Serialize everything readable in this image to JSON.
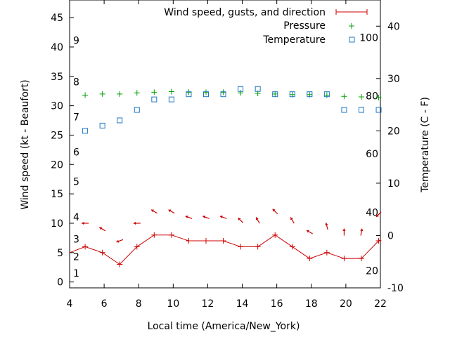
{
  "chart_data": {
    "type": "line",
    "xlabel": "Local time (America/New_York)",
    "ylabel_left": "Wind speed (kt - Beaufort)",
    "ylabel_right": "Temperature (C - F)",
    "x_range": [
      4,
      22
    ],
    "x_ticks": [
      "4",
      "6",
      "8",
      "10",
      "12",
      "14",
      "16",
      "18",
      "20",
      "22"
    ],
    "y_left_range": [
      -1,
      48
    ],
    "y_left_ticks": [
      "0",
      "5",
      "10",
      "15",
      "20",
      "25",
      "30",
      "35",
      "40",
      "45"
    ],
    "y_right_range": [
      -10,
      45
    ],
    "y_right_ticks": [
      "-10",
      "0",
      "10",
      "20",
      "30",
      "40"
    ],
    "beaufort_labels": [
      {
        "label": "1",
        "kt": 1.5
      },
      {
        "label": "2",
        "kt": 4.3
      },
      {
        "label": "3",
        "kt": 7.3
      },
      {
        "label": "4",
        "kt": 11.1
      },
      {
        "label": "5",
        "kt": 17.1
      },
      {
        "label": "6",
        "kt": 22.1
      },
      {
        "label": "7",
        "kt": 28.1
      },
      {
        "label": "8",
        "kt": 34.1
      },
      {
        "label": "9",
        "kt": 41.1
      }
    ],
    "fahrenheit_labels": [
      {
        "label": "20",
        "c": -6.7
      },
      {
        "label": "40",
        "c": 4.4
      },
      {
        "label": "60",
        "c": 15.6
      },
      {
        "label": "80",
        "c": 26.7
      },
      {
        "label": "100",
        "c": 37.8
      }
    ],
    "legend": {
      "wind": "Wind speed, gusts, and direction",
      "pressure": "Pressure",
      "temperature": "Temperature"
    },
    "series": [
      {
        "name": "Wind speed",
        "x": [
          4,
          4.9,
          5.9,
          6.9,
          7.9,
          8.9,
          9.9,
          10.9,
          11.9,
          12.9,
          13.9,
          14.9,
          15.9,
          16.9,
          17.9,
          18.9,
          19.9,
          20.9,
          21.9,
          22
        ],
        "values": [
          5,
          6,
          5,
          3,
          6,
          8,
          8,
          7,
          7,
          7,
          6,
          6,
          8,
          6,
          4,
          5,
          4,
          4,
          7,
          7.2
        ]
      },
      {
        "name": "Pressure",
        "x": [
          4.9,
          5.9,
          6.9,
          7.9,
          8.9,
          9.9,
          10.9,
          11.9,
          12.9,
          13.9,
          14.9,
          15.9,
          16.9,
          17.9,
          18.9,
          19.9,
          20.9,
          21.9
        ],
        "values": [
          31.8,
          32.0,
          32.0,
          32.2,
          32.3,
          32.4,
          32.3,
          32.3,
          32.3,
          32.2,
          32.1,
          32.0,
          31.9,
          31.9,
          31.8,
          31.6,
          31.5,
          31.4
        ]
      },
      {
        "name": "Temperature",
        "x": [
          4.9,
          5.9,
          6.9,
          7.9,
          8.9,
          9.9,
          10.9,
          11.9,
          12.9,
          13.9,
          14.9,
          15.9,
          16.9,
          17.9,
          18.9,
          19.9,
          20.9,
          21.9
        ],
        "values": [
          20.0,
          21.0,
          22.0,
          24.0,
          26.0,
          26.0,
          27.0,
          27.0,
          27.0,
          28.0,
          28.0,
          27.0,
          27.0,
          27.0,
          27.0,
          24.0,
          24.0,
          24.0
        ]
      },
      {
        "name": "Wind direction",
        "x": [
          4.9,
          5.9,
          6.9,
          7.9,
          8.9,
          9.9,
          10.9,
          11.9,
          12.9,
          13.9,
          14.9,
          15.9,
          16.9,
          17.9,
          18.9,
          19.9,
          20.9,
          21.9
        ],
        "gust_kt": [
          10,
          9,
          7,
          10,
          12,
          12,
          11,
          11,
          11,
          10.5,
          10.5,
          12,
          10.5,
          8.5,
          9.5,
          8.5,
          8.5,
          11.5
        ],
        "direction_deg": [
          270,
          300,
          250,
          270,
          300,
          300,
          290,
          290,
          290,
          315,
          330,
          315,
          330,
          300,
          345,
          360,
          10,
          225
        ]
      }
    ]
  }
}
